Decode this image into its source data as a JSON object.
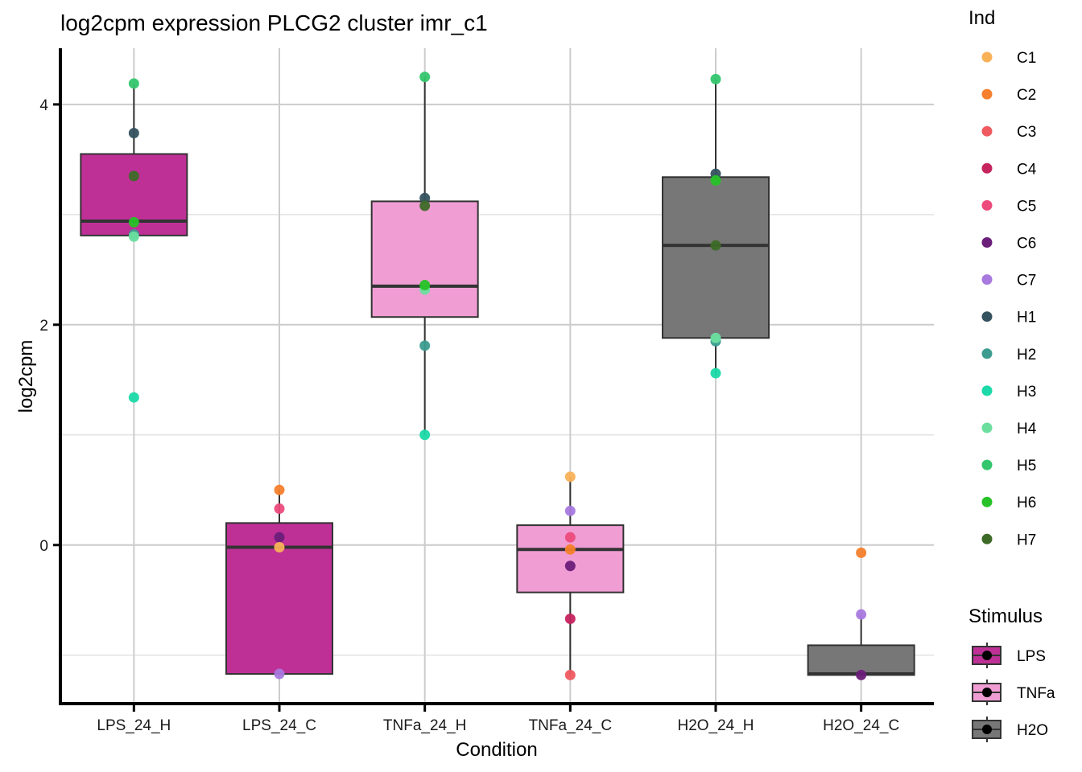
{
  "chart_data": {
    "type": "box",
    "title": "log2cpm expression PLCG2 cluster imr_c1",
    "xlabel": "Condition",
    "ylabel": "log2cpm",
    "ylim": [
      -1.44,
      4.51
    ],
    "yticks": [
      0,
      2,
      4
    ],
    "ytick_labels": [
      "0",
      "2",
      "4"
    ],
    "minor_gridlines": [
      -1,
      1,
      3
    ],
    "grid": true,
    "categories": [
      "LPS_24_H",
      "LPS_24_C",
      "TNFa_24_H",
      "TNFa_24_C",
      "H2O_24_H",
      "H2O_24_C"
    ],
    "boxes": [
      {
        "condition": "LPS_24_H",
        "stimulus": "LPS",
        "q1": 2.81,
        "median": 2.94,
        "q3": 3.55,
        "whisker_low": 2.81,
        "whisker_high": 4.19
      },
      {
        "condition": "LPS_24_C",
        "stimulus": "LPS",
        "q1": -1.17,
        "median": -0.02,
        "q3": 0.2,
        "whisker_low": -1.17,
        "whisker_high": 0.5
      },
      {
        "condition": "TNFa_24_H",
        "stimulus": "TNFa",
        "q1": 2.07,
        "median": 2.35,
        "q3": 3.12,
        "whisker_low": 1.0,
        "whisker_high": 4.25
      },
      {
        "condition": "TNFa_24_C",
        "stimulus": "TNFa",
        "q1": -0.43,
        "median": -0.04,
        "q3": 0.18,
        "whisker_low": -1.18,
        "whisker_high": 0.62
      },
      {
        "condition": "H2O_24_H",
        "stimulus": "H2O",
        "q1": 1.88,
        "median": 2.72,
        "q3": 3.34,
        "whisker_low": 1.55,
        "whisker_high": 4.23
      },
      {
        "condition": "H2O_24_C",
        "stimulus": "H2O",
        "q1": -1.18,
        "median": -1.17,
        "q3": -0.91,
        "whisker_low": -1.18,
        "whisker_high": -0.64
      }
    ],
    "points": [
      {
        "condition": "LPS_24_H",
        "ind": "H5",
        "value": 4.19
      },
      {
        "condition": "LPS_24_H",
        "ind": "H1",
        "value": 3.74
      },
      {
        "condition": "LPS_24_H",
        "ind": "H7",
        "value": 3.35
      },
      {
        "condition": "LPS_24_H",
        "ind": "H6",
        "value": 2.93
      },
      {
        "condition": "LPS_24_H",
        "ind": "H2",
        "value": 2.82
      },
      {
        "condition": "LPS_24_H",
        "ind": "H4",
        "value": 2.8
      },
      {
        "condition": "LPS_24_H",
        "ind": "H3",
        "value": 1.34
      },
      {
        "condition": "LPS_24_C",
        "ind": "C2",
        "value": 0.5
      },
      {
        "condition": "LPS_24_C",
        "ind": "C5",
        "value": 0.33
      },
      {
        "condition": "LPS_24_C",
        "ind": "C6",
        "value": 0.07
      },
      {
        "condition": "LPS_24_C",
        "ind": "C1",
        "value": -0.02
      },
      {
        "condition": "LPS_24_C",
        "ind": "C7",
        "value": -1.17
      },
      {
        "condition": "TNFa_24_H",
        "ind": "H5",
        "value": 4.25
      },
      {
        "condition": "TNFa_24_H",
        "ind": "H1",
        "value": 3.15
      },
      {
        "condition": "TNFa_24_H",
        "ind": "H7",
        "value": 3.08
      },
      {
        "condition": "TNFa_24_H",
        "ind": "H4",
        "value": 2.32
      },
      {
        "condition": "TNFa_24_H",
        "ind": "H6",
        "value": 2.36
      },
      {
        "condition": "TNFa_24_H",
        "ind": "H2",
        "value": 1.81
      },
      {
        "condition": "TNFa_24_H",
        "ind": "H3",
        "value": 1.0
      },
      {
        "condition": "TNFa_24_C",
        "ind": "C1",
        "value": 0.62
      },
      {
        "condition": "TNFa_24_C",
        "ind": "C7",
        "value": 0.31
      },
      {
        "condition": "TNFa_24_C",
        "ind": "C5",
        "value": 0.07
      },
      {
        "condition": "TNFa_24_C",
        "ind": "C2",
        "value": -0.04
      },
      {
        "condition": "TNFa_24_C",
        "ind": "C6",
        "value": -0.19
      },
      {
        "condition": "TNFa_24_C",
        "ind": "C4",
        "value": -0.67
      },
      {
        "condition": "TNFa_24_C",
        "ind": "C3",
        "value": -1.18
      },
      {
        "condition": "H2O_24_H",
        "ind": "H5",
        "value": 4.23
      },
      {
        "condition": "H2O_24_H",
        "ind": "H1",
        "value": 3.37
      },
      {
        "condition": "H2O_24_H",
        "ind": "H6",
        "value": 3.31
      },
      {
        "condition": "H2O_24_H",
        "ind": "H7",
        "value": 2.72
      },
      {
        "condition": "H2O_24_H",
        "ind": "H2",
        "value": 1.85
      },
      {
        "condition": "H2O_24_H",
        "ind": "H4",
        "value": 1.88
      },
      {
        "condition": "H2O_24_H",
        "ind": "H3",
        "value": 1.56
      },
      {
        "condition": "H2O_24_C",
        "ind": "C2",
        "value": -0.07
      },
      {
        "condition": "H2O_24_C",
        "ind": "C7",
        "value": -0.63
      },
      {
        "condition": "H2O_24_C",
        "ind": "C6",
        "value": -1.18
      }
    ],
    "legends": [
      {
        "title": "Ind",
        "placement": "right-top",
        "entries": [
          {
            "label": "C1",
            "color": "#F9B157"
          },
          {
            "label": "C2",
            "color": "#F57F2C"
          },
          {
            "label": "C3",
            "color": "#EF5A60"
          },
          {
            "label": "C4",
            "color": "#C6245E"
          },
          {
            "label": "C5",
            "color": "#EC4B7C"
          },
          {
            "label": "C6",
            "color": "#6B1E7A"
          },
          {
            "label": "C7",
            "color": "#A879DE"
          },
          {
            "label": "H1",
            "color": "#35525F"
          },
          {
            "label": "H2",
            "color": "#3C9C90"
          },
          {
            "label": "H3",
            "color": "#1BD9A8"
          },
          {
            "label": "H4",
            "color": "#6CDF9F"
          },
          {
            "label": "H5",
            "color": "#33C66D"
          },
          {
            "label": "H6",
            "color": "#27C227"
          },
          {
            "label": "H7",
            "color": "#3D6B27"
          }
        ]
      },
      {
        "title": "Stimulus",
        "placement": "right-bottom",
        "entries": [
          {
            "label": "LPS",
            "color": "#BE3096"
          },
          {
            "label": "TNFa",
            "color": "#F09DD4"
          },
          {
            "label": "H2O",
            "color": "#777777"
          }
        ]
      }
    ]
  }
}
